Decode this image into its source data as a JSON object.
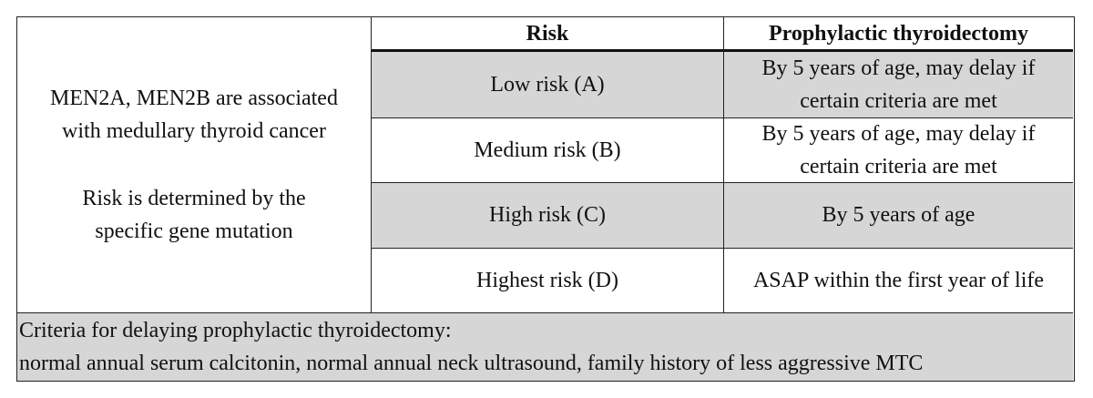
{
  "left_cell": {
    "paragraphs": [
      [
        "MEN2A, MEN2B are associated",
        "with medullary thyroid cancer"
      ],
      [
        "Risk is determined by the",
        "specific gene mutation"
      ]
    ]
  },
  "table": {
    "header": [
      "Risk",
      "Prophylactic thyroidectomy"
    ],
    "rows": [
      [
        "Low risk (A)",
        "By 5 years of age, may delay if certain criteria are met"
      ],
      [
        "Medium risk (B)",
        "By 5 years of age, may delay if certain criteria are met"
      ],
      [
        "High risk (C)",
        "By 5 years of age"
      ],
      [
        "Highest risk (D)",
        "ASAP within the first year of life"
      ]
    ]
  },
  "footer": {
    "title": "Criteria for delaying prophylactic thyroidectomy:",
    "text": "normal annual serum calcitonin, normal annual neck ultrasound, family history of less aggressive MTC"
  }
}
